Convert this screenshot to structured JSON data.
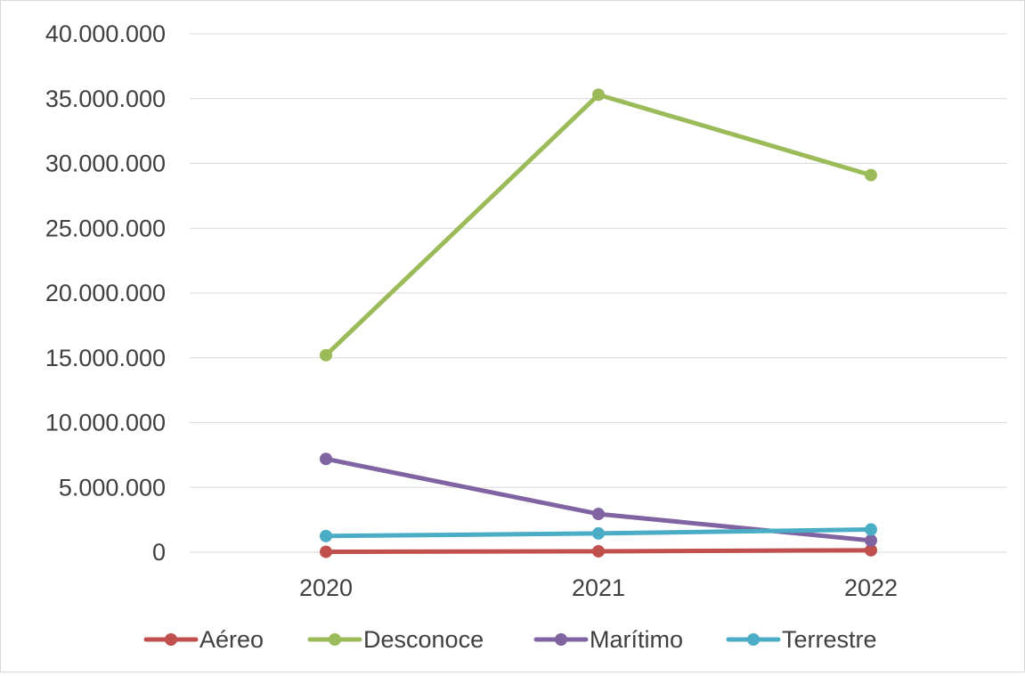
{
  "chart_data": {
    "type": "line",
    "categories": [
      "2020",
      "2021",
      "2022"
    ],
    "ylim": [
      0,
      40000000
    ],
    "yticks": [
      0,
      5000000,
      10000000,
      15000000,
      20000000,
      25000000,
      30000000,
      35000000,
      40000000
    ],
    "ytick_labels": [
      "0",
      "5.000.000",
      "10.000.000",
      "15.000.000",
      "20.000.000",
      "25.000.000",
      "30.000.000",
      "35.000.000",
      "40.000.000"
    ],
    "grid": true,
    "legend_position": "bottom",
    "series": [
      {
        "name": "Aéreo",
        "color": "#c0504d",
        "values": [
          30000,
          70000,
          150000
        ]
      },
      {
        "name": "Desconoce",
        "color": "#9bbb59",
        "values": [
          15200000,
          35300000,
          29100000
        ]
      },
      {
        "name": "Marítimo",
        "color": "#8064a2",
        "values": [
          7200000,
          2950000,
          900000
        ]
      },
      {
        "name": "Terrestre",
        "color": "#4bacc6",
        "values": [
          1250000,
          1450000,
          1750000
        ]
      }
    ]
  }
}
